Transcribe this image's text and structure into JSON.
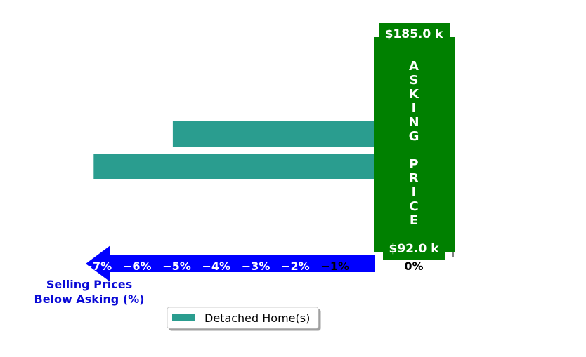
{
  "chart_data": {
    "type": "bar",
    "orientation": "horizontal",
    "series": [
      {
        "name": "Detached Home(s)",
        "values": [
          -5.1,
          -7.1
        ],
        "color": "#2a9d8f"
      }
    ],
    "xlabel": [
      "Selling Prices",
      "Below Asking (%)"
    ],
    "xticks": [
      "−7%",
      "−6%",
      "−5%",
      "−4%",
      "−3%",
      "−2%",
      "−1%",
      "0%"
    ],
    "xlim": [
      -9.3,
      2.1
    ],
    "arrow_color": "#0000ff",
    "xlabel_color": "#0a0ad6",
    "asking_price": {
      "text": "ASKING PRICE",
      "max_label": "$185.0 k",
      "min_label": "$92.0 k",
      "color": "#008000"
    },
    "legend": {
      "position": "bottom-center"
    },
    "grid": false
  }
}
